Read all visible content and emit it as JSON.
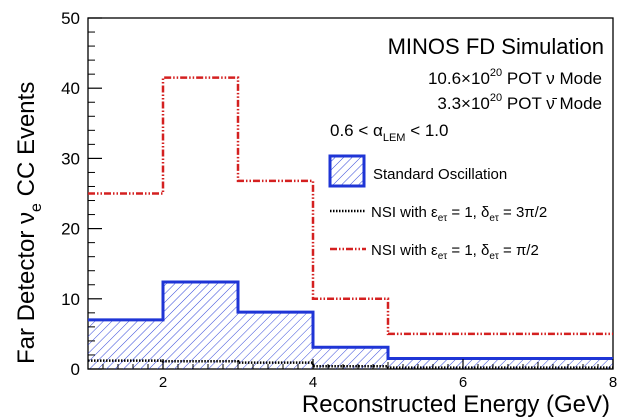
{
  "chart_data": {
    "type": "histogram",
    "title": "MINOS FD Simulation",
    "annotations": {
      "line1_prefix": "10.6×10",
      "line1_exp": "20",
      "line1_suffix": " POT ν Mode",
      "line2_prefix": "3.3×10",
      "line2_exp": "20",
      "line2_suffix": " POT ν̄ Mode",
      "line3_prefix": "0.6 < α",
      "line3_sub": "LEM",
      "line3_suffix": " < 1.0"
    },
    "xlabel": "Reconstructed Energy (GeV)",
    "ylabel_prefix": "Far Detector ν",
    "ylabel_sub": "e",
    "ylabel_suffix": " CC Events",
    "xlim": [
      1,
      8
    ],
    "ylim": [
      0,
      50
    ],
    "x_ticks": [
      2,
      4,
      6,
      8
    ],
    "y_ticks": [
      0,
      10,
      20,
      30,
      40,
      50
    ],
    "bin_edges": [
      1,
      2,
      3,
      4,
      5,
      8
    ],
    "series": [
      {
        "name": "Standard Oscillation",
        "style": "solid-hatched",
        "color": "#1f35d6",
        "values": [
          7.0,
          12.4,
          8.1,
          3.1,
          1.5
        ]
      },
      {
        "name": "NSI with ε_eτ = 1, δ_eτ = 3π/2",
        "style": "dotted",
        "color": "#000000",
        "values": [
          1.2,
          1.1,
          0.9,
          0.4,
          0.2
        ]
      },
      {
        "name": "NSI with ε_eτ = 1, δ_eτ = π/2",
        "style": "dash-dot",
        "color": "#d42020",
        "values": [
          25.0,
          41.5,
          26.8,
          10.0,
          5.0
        ]
      }
    ],
    "legend": [
      {
        "prefix": "Standard Oscillation"
      },
      {
        "prefix": "NSI with ε",
        "sub1": "eτ",
        "mid": " = 1, δ",
        "sub2": "eτ",
        "suffix": " = 3π/2"
      },
      {
        "prefix": "NSI with ε",
        "sub1": "eτ",
        "mid": " = 1, δ",
        "sub2": "eτ",
        "suffix": " = π/2"
      }
    ],
    "legend_position": "top-right",
    "grid": false
  }
}
